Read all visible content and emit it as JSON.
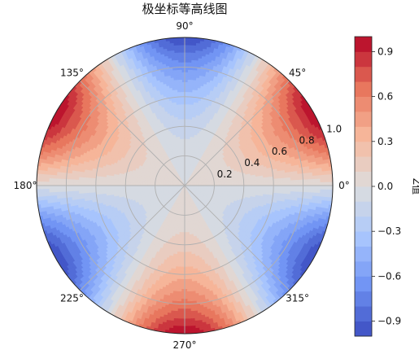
{
  "chart_data": {
    "type": "polar-contour",
    "title": "极坐标等高线图",
    "function": "z = r^2 * sin(3*theta)",
    "r_range": [
      0,
      1.0
    ],
    "theta_range_deg": [
      0,
      360
    ],
    "angular_ticks_deg": [
      0,
      45,
      90,
      135,
      180,
      225,
      270,
      315
    ],
    "angular_tick_labels": [
      "0°",
      "45°",
      "90°",
      "135°",
      "180°",
      "225°",
      "270°",
      "315°"
    ],
    "radial_ticks": [
      0.2,
      0.4,
      0.6,
      0.8,
      1.0
    ],
    "radial_tick_labels": [
      "0.2",
      "0.4",
      "0.6",
      "0.8",
      "1.0"
    ],
    "radial_label_angle_deg": 22.5,
    "grid": true,
    "contour_levels": 20,
    "colorbar": {
      "label": "Z值",
      "range": [
        -1.0,
        1.0
      ],
      "ticks": [
        -0.9,
        -0.6,
        -0.3,
        0.0,
        0.3,
        0.6,
        0.9
      ],
      "tick_labels": [
        "−0.9",
        "−0.6",
        "−0.3",
        "0.0",
        "0.3",
        "0.6",
        "0.9"
      ],
      "position": "right"
    },
    "colormap": "coolwarm",
    "colormap_stops": [
      "#3b4cc0",
      "#6f92f3",
      "#aac7fd",
      "#dddddd",
      "#f7b89c",
      "#e7745b",
      "#b40426"
    ]
  }
}
